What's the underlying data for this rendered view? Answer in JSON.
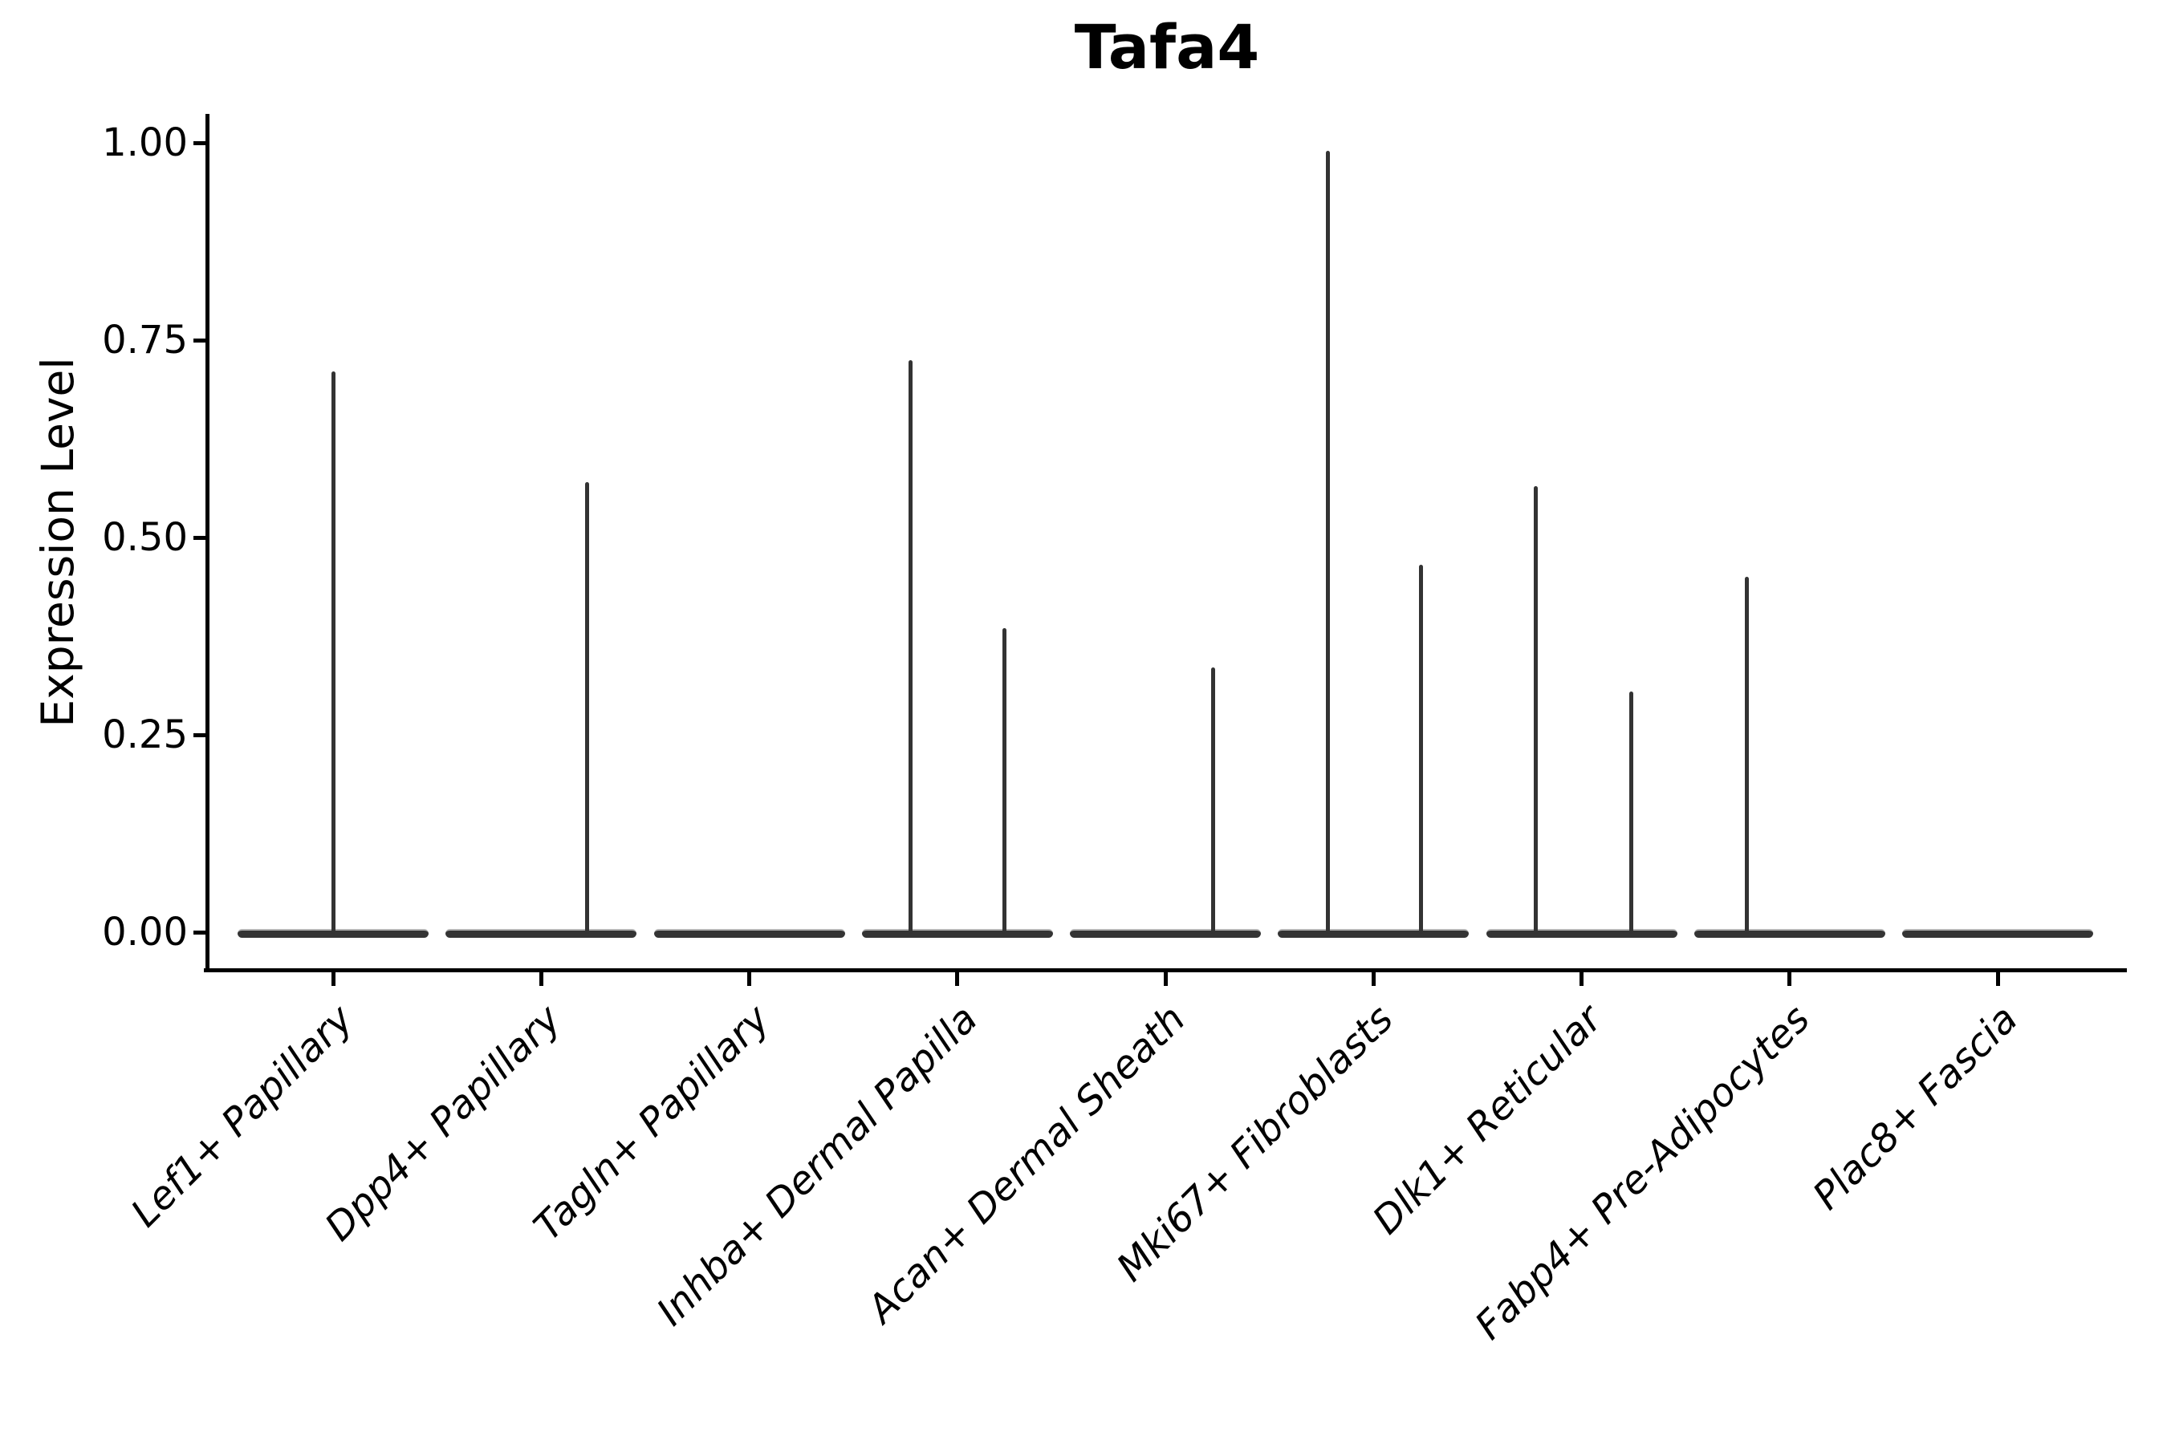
{
  "figure": {
    "background": "#ffffff"
  },
  "colors": {
    "violin_body": "#343434",
    "violin_edge_highlight": "#b5b5b5",
    "spike": "#333333",
    "axis": "#000000",
    "text": "#000000"
  },
  "chart_data": {
    "type": "violin",
    "title": "Tafa4",
    "xlabel": "",
    "ylabel": "Expression Level",
    "ylim": [
      0,
      1.04
    ],
    "grid": false,
    "legend": null,
    "yticks": [
      "0.00",
      "0.25",
      "0.50",
      "0.75",
      "1.00"
    ],
    "ytick_values": [
      0.0,
      0.25,
      0.5,
      0.75,
      1.0
    ],
    "categories": [
      "Lef1+ Papillary",
      "Dpp4+ Papillary",
      "Tagln+ Papillary",
      "Inhba+ Dermal Papilla",
      "Acan+ Dermal Sheath",
      "Mki67+ Fibroblasts",
      "Dlk1+ Reticular",
      "Fabp4+ Pre-Adipocytes",
      "Plac8+ Fascia"
    ],
    "series": [
      {
        "category": "Lef1+ Papillary",
        "baseline_value": 0,
        "spikes": [
          {
            "offset_frac": 0.0,
            "value": 0.71
          }
        ]
      },
      {
        "category": "Dpp4+ Papillary",
        "baseline_value": 0,
        "spikes": [
          {
            "offset_frac": 0.222,
            "value": 0.57
          }
        ]
      },
      {
        "category": "Tagln+ Papillary",
        "baseline_value": 0,
        "spikes": []
      },
      {
        "category": "Inhba+ Dermal Papilla",
        "baseline_value": 0,
        "spikes": [
          {
            "offset_frac": -0.223,
            "value": 0.725
          },
          {
            "offset_frac": 0.228,
            "value": 0.385
          }
        ]
      },
      {
        "category": "Acan+ Dermal Sheath",
        "baseline_value": 0,
        "spikes": [
          {
            "offset_frac": 0.228,
            "value": 0.335
          }
        ]
      },
      {
        "category": "Mki67+ Fibroblasts",
        "baseline_value": 0,
        "spikes": [
          {
            "offset_frac": -0.217,
            "value": 0.99
          },
          {
            "offset_frac": 0.23,
            "value": 0.465
          }
        ]
      },
      {
        "category": "Dlk1+ Reticular",
        "baseline_value": 0,
        "spikes": [
          {
            "offset_frac": -0.218,
            "value": 0.565
          },
          {
            "offset_frac": 0.241,
            "value": 0.305
          }
        ]
      },
      {
        "category": "Fabp4+ Pre-Adipocytes",
        "baseline_value": 0,
        "spikes": [
          {
            "offset_frac": -0.204,
            "value": 0.45
          }
        ]
      },
      {
        "category": "Plac8+ Fascia",
        "baseline_value": 0,
        "spikes": []
      }
    ]
  }
}
